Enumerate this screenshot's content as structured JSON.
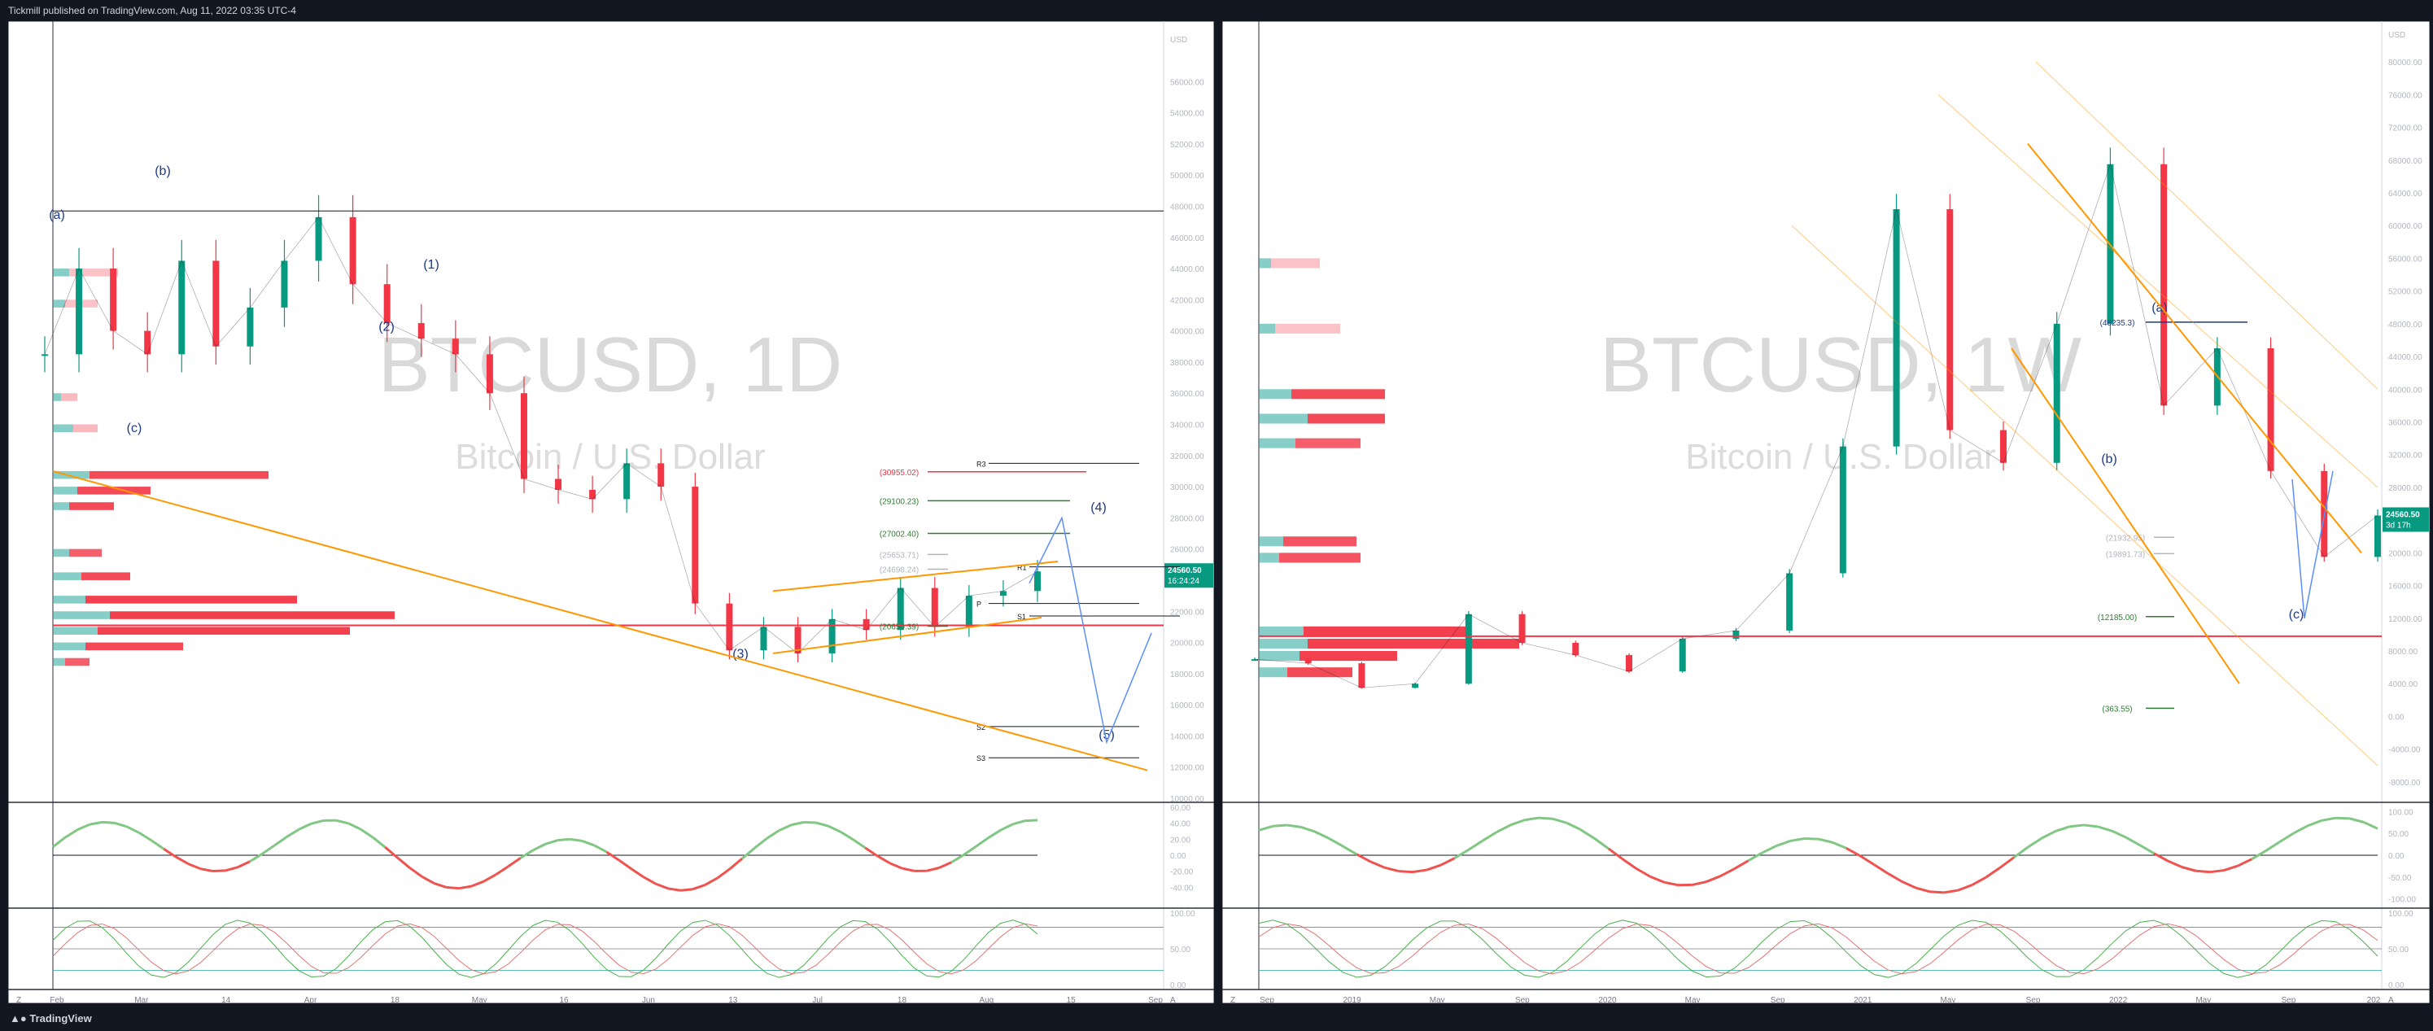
{
  "header": {
    "published": "Tickmill published on TradingView.com, Aug 11, 2022 03:35 UTC-4"
  },
  "footer": {
    "brand": "TradingView"
  },
  "colors": {
    "bull": "#26a69a",
    "bull_candle": "#089981",
    "bear": "#f23645",
    "wave_label": "#1e3a8a",
    "projection": "#5b8ff9",
    "trendline": "#ff9800",
    "price_badge": "#089981",
    "support_line": "#f23645",
    "pivot_pink": "#e040fb"
  },
  "chart_data": [
    {
      "type": "line",
      "symbol": "BTCUSD",
      "timeframe": "1D",
      "watermark_title": "BTCUSD, 1D",
      "watermark_subtitle": "Bitcoin / U.S. Dollar",
      "currency": "USD",
      "price_label": "24560.50",
      "countdown": "16:24:24",
      "ylim": [
        10000,
        58000
      ],
      "y_ticks": [
        "USD",
        "56000.00",
        "54000.00",
        "52000.00",
        "50000.00",
        "48000.00",
        "46000.00",
        "44000.00",
        "42000.00",
        "40000.00",
        "38000.00",
        "36000.00",
        "34000.00",
        "32000.00",
        "30000.00",
        "28000.00",
        "26000.00",
        "24000.00",
        "22000.00",
        "20000.00",
        "18000.00",
        "16000.00",
        "14000.00",
        "12000.00",
        "10000.00"
      ],
      "x_ticks": [
        "Feb",
        "Mar",
        "14",
        "Apr",
        "18",
        "May",
        "16",
        "Jun",
        "13",
        "Jul",
        "18",
        "Aug",
        "15",
        "Sep"
      ],
      "series": [
        {
          "name": "BTCUSD",
          "x": [
            "Feb-01",
            "Feb-10",
            "Feb-18",
            "Feb-25",
            "Mar-02",
            "Mar-10",
            "Mar-18",
            "Mar-25",
            "Mar-30",
            "Apr-06",
            "Apr-14",
            "Apr-22",
            "Apr-30",
            "May-06",
            "May-10",
            "May-16",
            "May-25",
            "Jun-01",
            "Jun-10",
            "Jun-13",
            "Jun-18",
            "Jun-25",
            "Jul-01",
            "Jul-08",
            "Jul-15",
            "Jul-20",
            "Jul-26",
            "Aug-01",
            "Aug-08",
            "Aug-11"
          ],
          "values": [
            38500,
            44000,
            40000,
            38500,
            44500,
            39000,
            41500,
            44500,
            47300,
            43000,
            40500,
            39500,
            38500,
            36000,
            30500,
            29800,
            29200,
            31500,
            30000,
            22500,
            19500,
            21000,
            19300,
            21500,
            20800,
            23500,
            21000,
            23000,
            23300,
            24560
          ]
        }
      ],
      "annotations": {
        "waves": [
          "(a)",
          "(b)",
          "(c)",
          "(1)",
          "(2)",
          "(3)",
          "(4)",
          "(5)"
        ],
        "levels": [
          "(30955.02)",
          "(29100.23)",
          "(27002.40)",
          "(25653.71)",
          "(24698.24)",
          "(20650.39)"
        ],
        "pivots": [
          "R3",
          "R1",
          "P",
          "S1",
          "S2",
          "S3"
        ]
      },
      "oscillator1": {
        "ylim": [
          -60,
          60
        ],
        "y_ticks": [
          "60.00",
          "40.00",
          "20.00",
          "0.00",
          "-20.00",
          "-40.00"
        ]
      },
      "oscillator2": {
        "ylim": [
          0,
          100
        ],
        "y_ticks": [
          "100.00",
          "50.00",
          "0.00"
        ]
      }
    },
    {
      "type": "line",
      "symbol": "BTCUSD",
      "timeframe": "1W",
      "watermark_title": "BTCUSD, 1W",
      "watermark_subtitle": "Bitcoin / U.S. Dollar",
      "currency": "USD",
      "price_label": "24560.50",
      "countdown": "3d 17h",
      "ylim": [
        -10000,
        82000
      ],
      "y_ticks": [
        "USD",
        "80000.00",
        "76000.00",
        "72000.00",
        "68000.00",
        "64000.00",
        "60000.00",
        "56000.00",
        "52000.00",
        "48000.00",
        "44000.00",
        "40000.00",
        "36000.00",
        "32000.00",
        "28000.00",
        "24000.00",
        "20000.00",
        "16000.00",
        "12000.00",
        "8000.00",
        "4000.00",
        "0.00",
        "-4000.00",
        "-8000.00"
      ],
      "x_ticks": [
        "Sep",
        "2019",
        "May",
        "Sep",
        "2020",
        "May",
        "Sep",
        "2021",
        "May",
        "Sep",
        "2022",
        "May",
        "Sep",
        "202"
      ],
      "series": [
        {
          "name": "BTCUSD",
          "x": [
            "2018-08",
            "2018-10",
            "2018-12",
            "2019-03",
            "2019-06",
            "2019-09",
            "2019-12",
            "2020-03",
            "2020-06",
            "2020-09",
            "2020-11",
            "2021-01",
            "2021-04",
            "2021-06",
            "2021-07",
            "2021-09",
            "2021-11",
            "2022-01",
            "2022-03",
            "2022-05",
            "2022-06",
            "2022-08"
          ],
          "values": [
            7000,
            6500,
            3500,
            4000,
            12500,
            9000,
            7500,
            5500,
            9500,
            10500,
            17500,
            33000,
            62000,
            35000,
            31000,
            48000,
            67500,
            38000,
            45000,
            30000,
            19500,
            24560
          ]
        }
      ],
      "annotations": {
        "waves": [
          "(a)",
          "(b)",
          "(c)"
        ],
        "levels": [
          "(48235.3)",
          "(21932.95)",
          "(19891.73)",
          "(12185.00)",
          "(363.55)"
        ]
      },
      "oscillator1": {
        "ylim": [
          -110,
          110
        ],
        "y_ticks": [
          "100.00",
          "50.00",
          "0.00",
          "-50.00",
          "-100.00"
        ]
      },
      "oscillator2": {
        "ylim": [
          0,
          100
        ],
        "y_ticks": [
          "100.00",
          "50.00",
          "0.00"
        ]
      }
    }
  ]
}
